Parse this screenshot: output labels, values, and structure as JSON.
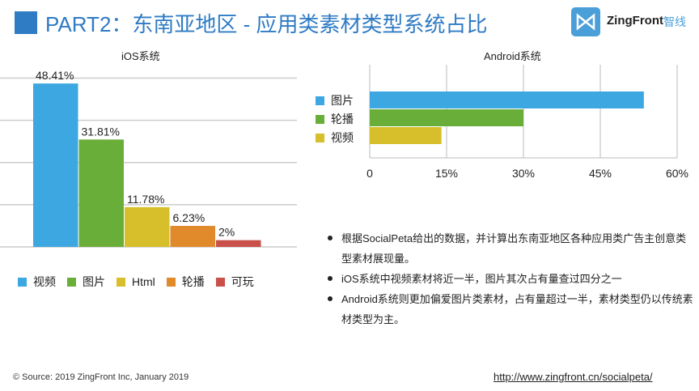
{
  "header": {
    "title": "PART2：东南亚地区 - 应用类素材类型系统占比",
    "logo_text": "ZingFront",
    "logo_cn": "智线"
  },
  "chart_data": [
    {
      "type": "bar",
      "title": "iOS系统",
      "categories": [
        "视频",
        "图片",
        "Html",
        "轮播",
        "可玩"
      ],
      "values": [
        48.41,
        31.81,
        11.78,
        6.23,
        2
      ],
      "labels": [
        "48.41%",
        "31.81%",
        "11.78%",
        "6.23%",
        "2%"
      ],
      "colors": [
        "#3ca7e0",
        "#6aae3a",
        "#d7bf2b",
        "#e08a2c",
        "#c9514a"
      ],
      "ylim": [
        0,
        50
      ],
      "grid": true,
      "legend": "bottom"
    },
    {
      "type": "bar",
      "orientation": "horizontal",
      "title": "Android系统",
      "categories": [
        "图片",
        "轮播",
        "视频"
      ],
      "values": [
        53.5,
        30,
        14
      ],
      "colors": [
        "#3ca7e0",
        "#6aae3a",
        "#d7bf2b"
      ],
      "xticks": [
        "0",
        "15%",
        "30%",
        "45%",
        "60%"
      ],
      "xlim": [
        0,
        60
      ],
      "grid": true,
      "legend": "left"
    }
  ],
  "bullets": [
    "根据SocialPeta给出的数据，并计算出东南亚地区各种应用类广告主创意类型素材展现量。",
    "iOS系统中视频素材将近一半，图片其次占有量查过四分之一",
    "Android系统则更加偏爱图片类素材，占有量超过一半，素材类型仍以传统素材类型为主。"
  ],
  "footer": {
    "source": "© Source: 2019 ZingFront Inc, January 2019",
    "link": "http://www.zingfront.cn/socialpeta/"
  }
}
